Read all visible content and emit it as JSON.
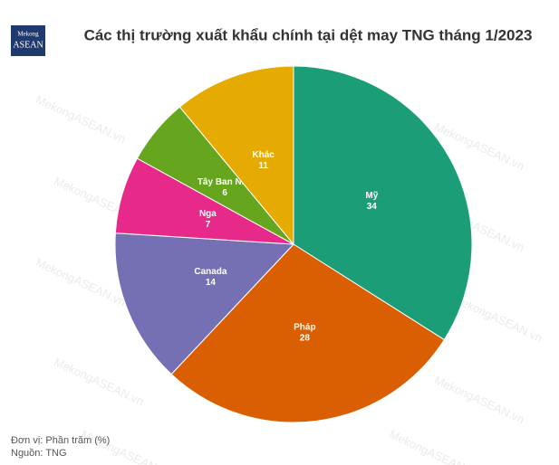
{
  "logo": [
    "Mekong",
    "ASEAN"
  ],
  "watermark": "MekongASEAN.vn",
  "chart_data": {
    "type": "pie",
    "title": "Các thị trường xuất khẩu chính tại dệt may TNG tháng 1/2023",
    "categories": [
      "Mỹ",
      "Pháp",
      "Canada",
      "Nga",
      "Tây Ban Nha",
      "Khác"
    ],
    "values": [
      34,
      28,
      14,
      7,
      6,
      11
    ],
    "colors": [
      "#1b9e77",
      "#d95f02",
      "#7570b3",
      "#e7298a",
      "#66a61e",
      "#e6ab02"
    ],
    "notes": [
      "Đơn vị: Phần trăm (%)",
      "Nguồn: TNG"
    ]
  }
}
